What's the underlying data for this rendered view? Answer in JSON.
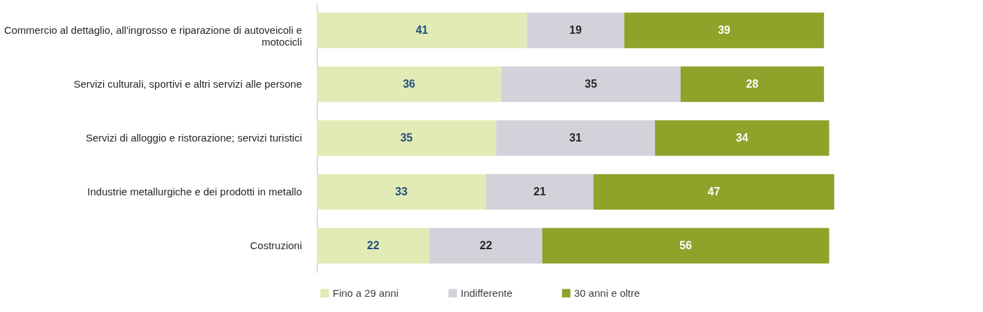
{
  "chart_data": {
    "type": "bar",
    "orientation": "horizontal",
    "stacked": true,
    "data_labels": true,
    "legend": "bottom",
    "grid": false,
    "categories": [
      "Commercio al dettaglio, all'ingrosso e riparazione di autoveicoli e motocicli",
      "Servizi culturali, sportivi e altri servizi alle persone",
      "Servizi di alloggio e ristorazione; servizi turistici",
      "Industrie metallurgiche e dei prodotti in metallo",
      "Costruzioni"
    ],
    "series": [
      {
        "name": "Fino a 29 anni",
        "color": "#e2ebb6",
        "values": [
          41,
          36,
          35,
          33,
          22
        ]
      },
      {
        "name": "Indifferente",
        "color": "#d3d1da",
        "values": [
          19,
          35,
          31,
          21,
          22
        ]
      },
      {
        "name": "30 anni e oltre",
        "color": "#8fa22a",
        "values": [
          39,
          28,
          34,
          47,
          56
        ]
      }
    ]
  }
}
